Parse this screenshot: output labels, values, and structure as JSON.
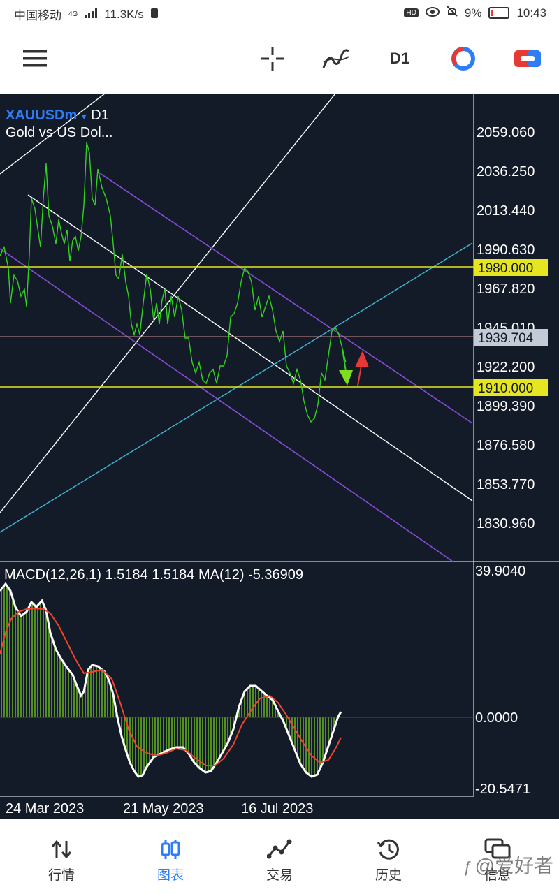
{
  "status_bar": {
    "carrier": "中国移动",
    "network": "4G",
    "speed": "11.3K/s",
    "battery": "9%",
    "time": "10:43",
    "hd": "HD"
  },
  "toolbar": {
    "timeframe": "D1"
  },
  "chart": {
    "symbol": "XAUUSDm",
    "timeframe": "D1",
    "description": "Gold vs US Dol...",
    "price_scale": [
      "2059.060",
      "2036.250",
      "2013.440",
      "1990.630",
      "1967.820",
      "1945.010",
      "1922.200",
      "1899.390",
      "1876.580",
      "1853.770",
      "1830.960"
    ],
    "levels": {
      "resistance": "1980.000",
      "current": "1939.704",
      "support": "1910.000"
    },
    "date_labels": [
      "24 Mar 2023",
      "21 May 2023",
      "16 Jul 2023"
    ],
    "colors": {
      "background": "#131a28",
      "price_line": "#32d11f",
      "level_line": "#e6e620",
      "channel": "#8a4bd6",
      "trendline": "#ffffff",
      "uptrend": "#3fb8d8"
    }
  },
  "macd": {
    "label": "MACD(12,26,1) 1.5184 1.5184 MA(12) -5.36909",
    "scale": [
      "39.9040",
      "0.0000",
      "-20.5471"
    ]
  },
  "nav": {
    "items": [
      {
        "label": "行情",
        "icon": "quotes-icon"
      },
      {
        "label": "图表",
        "icon": "chart-icon"
      },
      {
        "label": "交易",
        "icon": "trade-icon"
      },
      {
        "label": "历史",
        "icon": "history-icon"
      },
      {
        "label": "信息",
        "icon": "messages-icon"
      }
    ],
    "active": 1
  },
  "watermark": "@爱好者"
}
